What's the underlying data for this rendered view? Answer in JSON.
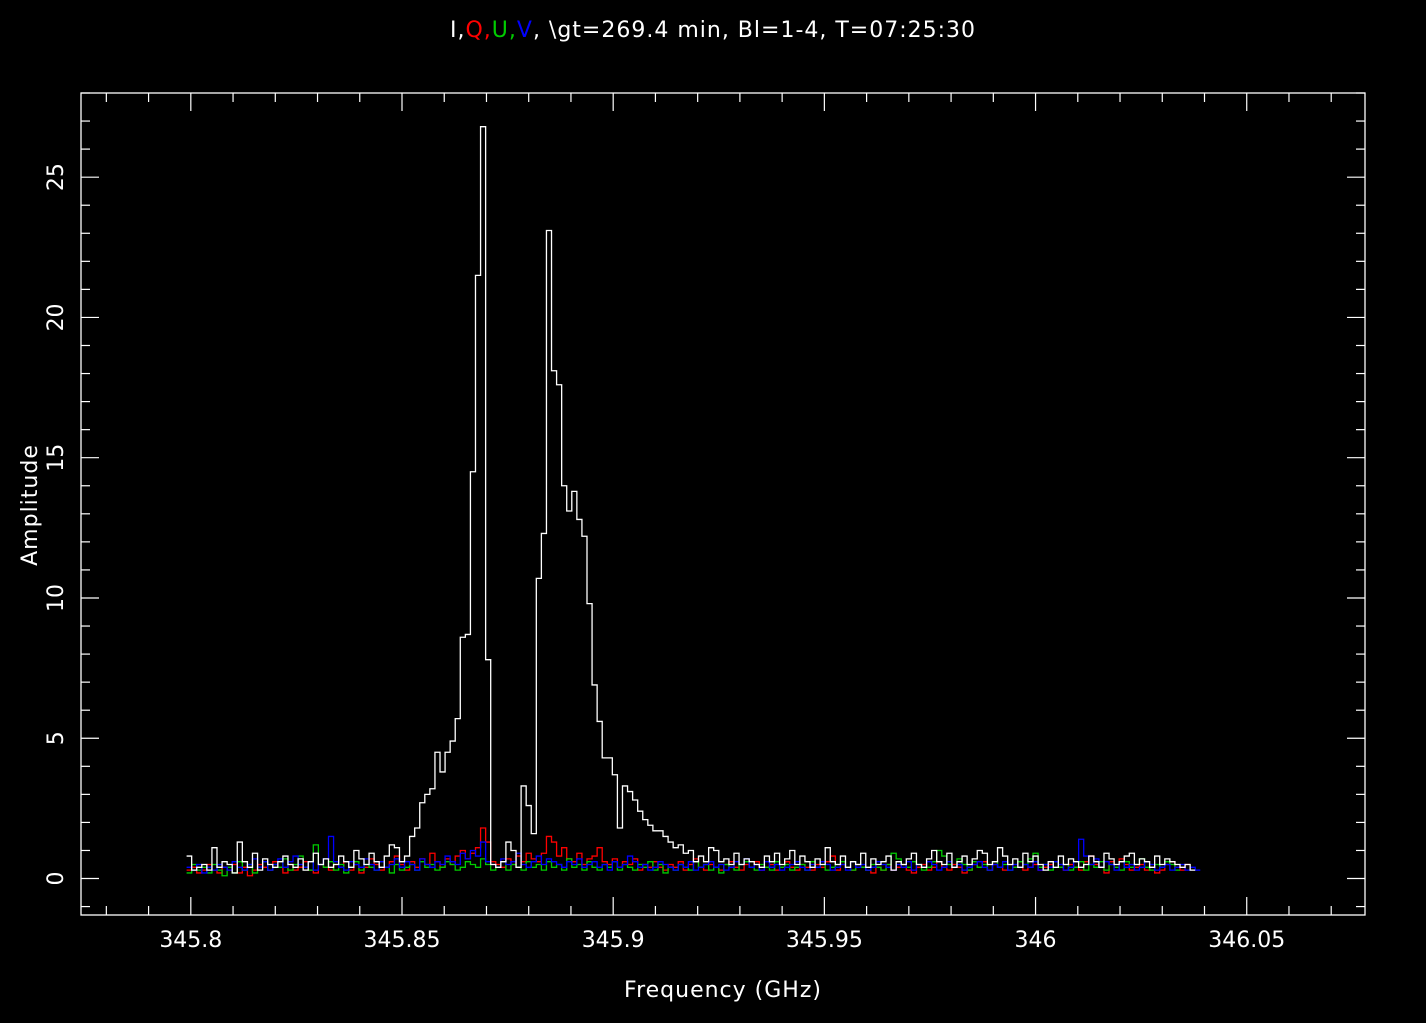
{
  "title": {
    "parts": [
      {
        "text": "I",
        "color": "#ffffff"
      },
      {
        "text": ",",
        "color": "#ffffff"
      },
      {
        "text": "Q",
        "color": "#ff0000"
      },
      {
        "text": ",",
        "color": "#ff0000"
      },
      {
        "text": "U",
        "color": "#00cc00"
      },
      {
        "text": ",",
        "color": "#00cc00"
      },
      {
        "text": "V",
        "color": "#0000ff"
      },
      {
        "text": ", \\gt=269.4 min, Bl=1-4, T=07:25:30",
        "color": "#ffffff"
      }
    ]
  },
  "chart_data": {
    "type": "line",
    "style": "step",
    "xlabel": "Frequency (GHz)",
    "ylabel": "Amplitude",
    "xlim": [
      345.774,
      346.078
    ],
    "ylim": [
      -1.3,
      28.0
    ],
    "xticks": [
      345.8,
      345.85,
      345.9,
      345.95,
      346,
      346.05
    ],
    "xtick_labels": [
      "345.8",
      "345.85",
      "345.9",
      "345.95",
      "346",
      "346.05"
    ],
    "yticks": [
      0,
      5,
      10,
      15,
      20,
      25
    ],
    "ytick_labels": [
      "0",
      "5",
      "10",
      "15",
      "20",
      "25"
    ],
    "grid": false,
    "background": "#000000",
    "series": [
      {
        "name": "I",
        "color": "#ffffff",
        "x_start": 345.799,
        "x_step": 0.0012,
        "values": [
          0.8,
          0.3,
          0.4,
          0.5,
          0.3,
          1.1,
          0.4,
          0.6,
          0.5,
          0.2,
          1.3,
          0.6,
          0.4,
          0.9,
          0.3,
          0.7,
          0.5,
          0.4,
          0.6,
          0.8,
          0.5,
          0.4,
          0.7,
          0.3,
          0.6,
          0.9,
          0.5,
          0.7,
          0.4,
          0.5,
          0.8,
          0.6,
          0.4,
          1.0,
          0.7,
          0.5,
          0.9,
          0.6,
          0.4,
          0.8,
          1.2,
          1.1,
          0.6,
          0.8,
          1.5,
          1.8,
          2.7,
          3.0,
          3.2,
          4.5,
          3.8,
          4.5,
          4.9,
          5.7,
          8.6,
          8.7,
          14.5,
          21.5,
          26.8,
          7.8,
          0.5,
          0.4,
          0.6,
          1.3,
          1.0,
          0.4,
          3.3,
          2.6,
          1.6,
          10.7,
          12.3,
          23.1,
          18.1,
          17.6,
          14.0,
          13.1,
          13.8,
          12.8,
          12.2,
          9.8,
          6.9,
          5.6,
          4.3,
          4.3,
          3.7,
          1.8,
          3.3,
          3.1,
          2.8,
          2.4,
          2.1,
          1.9,
          1.7,
          1.7,
          1.5,
          1.3,
          1.1,
          1.2,
          0.9,
          1.0,
          0.6,
          0.8,
          0.6,
          1.1,
          1.0,
          0.6,
          0.7,
          0.5,
          0.9,
          0.5,
          0.7,
          0.6,
          0.5,
          0.4,
          0.8,
          0.6,
          0.9,
          0.5,
          0.7,
          1.0,
          0.5,
          0.8,
          0.6,
          0.4,
          0.7,
          0.5,
          1.1,
          0.6,
          0.5,
          0.8,
          0.4,
          0.6,
          0.5,
          0.9,
          0.4,
          0.7,
          0.5,
          0.6,
          0.8,
          0.3,
          0.6,
          0.5,
          0.7,
          0.9,
          0.5,
          0.4,
          0.7,
          1.0,
          0.6,
          0.5,
          0.9,
          0.4,
          0.6,
          0.8,
          0.5,
          0.7,
          1.0,
          0.9,
          0.5,
          0.6,
          1.1,
          0.8,
          0.5,
          0.7,
          0.4,
          0.9,
          0.6,
          0.8,
          0.5,
          0.3,
          0.6,
          0.4,
          0.8,
          0.5,
          0.7,
          0.6,
          0.4,
          0.5,
          0.8,
          0.6,
          0.4,
          0.9,
          0.7,
          0.5,
          0.6,
          0.8,
          0.9,
          0.5,
          0.7,
          0.6,
          0.4,
          0.8,
          0.5,
          0.7,
          0.6,
          0.5,
          0.4,
          0.5,
          0.3
        ]
      },
      {
        "name": "Q",
        "color": "#ff0000",
        "x_start": 345.799,
        "x_step": 0.0012,
        "values": [
          0.3,
          0.4,
          0.2,
          0.3,
          0.5,
          0.3,
          0.2,
          0.4,
          0.3,
          0.5,
          0.2,
          0.4,
          0.1,
          0.3,
          0.5,
          0.4,
          0.3,
          0.6,
          0.4,
          0.2,
          0.5,
          0.3,
          0.4,
          0.6,
          0.3,
          0.2,
          0.5,
          0.4,
          0.3,
          0.5,
          0.4,
          0.6,
          0.3,
          0.5,
          0.2,
          0.4,
          0.7,
          0.5,
          0.3,
          0.4,
          0.6,
          0.8,
          0.5,
          0.3,
          0.6,
          0.4,
          0.7,
          0.5,
          0.9,
          0.6,
          0.4,
          0.7,
          0.5,
          0.8,
          1.0,
          0.7,
          0.9,
          1.1,
          1.8,
          1.3,
          0.6,
          0.5,
          0.4,
          0.7,
          0.5,
          0.8,
          0.6,
          0.9,
          0.7,
          0.6,
          0.9,
          1.5,
          1.3,
          0.8,
          1.1,
          0.7,
          0.6,
          0.9,
          0.5,
          0.7,
          0.8,
          1.1,
          0.6,
          0.5,
          0.7,
          0.4,
          0.6,
          0.5,
          0.7,
          0.3,
          0.5,
          0.4,
          0.6,
          0.4,
          0.3,
          0.5,
          0.4,
          0.6,
          0.3,
          0.5,
          0.7,
          0.4,
          0.3,
          0.5,
          0.4,
          0.3,
          0.5,
          0.6,
          0.4,
          0.3,
          0.5,
          0.4,
          0.6,
          0.3,
          0.4,
          0.5,
          0.3,
          0.4,
          0.6,
          0.4,
          0.3,
          0.5,
          0.4,
          0.3,
          0.5,
          0.4,
          0.6,
          0.8,
          0.3,
          0.5,
          0.4,
          0.3,
          0.5,
          0.4,
          0.3,
          0.2,
          0.4,
          0.3,
          0.5,
          0.3,
          0.4,
          0.5,
          0.3,
          0.2,
          0.4,
          0.5,
          0.3,
          0.4,
          0.6,
          0.4,
          0.3,
          0.5,
          0.4,
          0.2,
          0.3,
          0.5,
          0.4,
          0.6,
          0.3,
          0.5,
          0.4,
          0.3,
          0.5,
          0.4,
          0.6,
          0.3,
          0.4,
          0.5,
          0.3,
          0.4,
          0.5,
          0.6,
          0.4,
          0.3,
          0.5,
          0.4,
          0.3,
          0.6,
          0.8,
          0.5,
          0.4,
          0.2,
          0.6,
          0.4,
          0.7,
          0.5,
          0.3,
          0.4,
          0.5,
          0.3,
          0.4,
          0.2,
          0.3,
          0.5,
          0.6,
          0.4,
          0.3,
          0.5
        ]
      },
      {
        "name": "U",
        "color": "#00cc00",
        "x_start": 345.799,
        "x_step": 0.0012,
        "values": [
          0.2,
          0.5,
          0.3,
          0.4,
          0.2,
          0.5,
          0.3,
          0.1,
          0.4,
          0.2,
          0.6,
          0.3,
          0.5,
          0.2,
          0.4,
          0.6,
          0.3,
          0.5,
          0.4,
          0.7,
          0.3,
          0.5,
          0.8,
          0.4,
          0.3,
          1.2,
          0.5,
          0.4,
          0.6,
          0.3,
          0.5,
          0.2,
          0.4,
          0.6,
          0.3,
          0.5,
          0.4,
          0.3,
          0.6,
          0.4,
          0.2,
          0.5,
          0.3,
          0.4,
          0.5,
          0.3,
          0.6,
          0.4,
          0.5,
          0.3,
          0.4,
          0.6,
          0.5,
          0.3,
          0.4,
          0.6,
          0.5,
          0.4,
          0.7,
          0.5,
          0.3,
          0.4,
          0.6,
          0.3,
          0.5,
          0.4,
          0.3,
          0.6,
          0.4,
          0.5,
          0.3,
          0.6,
          0.4,
          0.5,
          0.3,
          0.7,
          0.4,
          0.5,
          0.3,
          0.6,
          0.4,
          0.3,
          0.5,
          0.4,
          0.6,
          0.3,
          0.5,
          0.4,
          0.3,
          0.5,
          0.4,
          0.6,
          0.3,
          0.5,
          0.2,
          0.4,
          0.3,
          0.5,
          0.4,
          0.3,
          0.6,
          0.4,
          0.5,
          0.3,
          0.4,
          0.2,
          0.5,
          0.4,
          0.3,
          0.5,
          0.6,
          0.4,
          0.3,
          0.5,
          0.4,
          0.3,
          0.6,
          0.4,
          0.5,
          0.3,
          0.4,
          0.5,
          0.3,
          0.6,
          0.4,
          0.5,
          0.3,
          0.4,
          0.5,
          0.6,
          0.4,
          0.3,
          0.5,
          0.4,
          0.3,
          0.5,
          0.4,
          0.3,
          0.5,
          0.9,
          0.7,
          0.5,
          0.4,
          0.6,
          0.5,
          0.3,
          0.4,
          0.6,
          1.0,
          0.8,
          0.5,
          0.4,
          0.7,
          0.5,
          0.3,
          0.6,
          0.4,
          0.5,
          0.3,
          0.6,
          0.4,
          0.5,
          0.3,
          0.4,
          0.6,
          0.5,
          0.7,
          0.9,
          0.4,
          0.5,
          0.3,
          0.6,
          0.4,
          0.5,
          0.3,
          0.4,
          0.6,
          0.3,
          0.5,
          0.4,
          0.6,
          0.3,
          0.5,
          0.4,
          0.3,
          0.6,
          0.4,
          0.5,
          0.7,
          0.4,
          0.3,
          0.5,
          0.4,
          0.6,
          0.5,
          0.3
        ]
      },
      {
        "name": "V",
        "color": "#0000ff",
        "x_start": 345.799,
        "x_step": 0.0012,
        "values": [
          0.4,
          0.3,
          0.5,
          0.2,
          0.4,
          0.3,
          0.5,
          0.4,
          0.3,
          0.6,
          0.4,
          0.3,
          0.5,
          0.7,
          0.4,
          0.6,
          0.3,
          0.5,
          0.7,
          0.4,
          0.6,
          0.8,
          0.5,
          0.4,
          0.6,
          0.3,
          0.5,
          0.7,
          1.5,
          0.6,
          0.4,
          0.3,
          0.6,
          0.5,
          0.4,
          0.7,
          0.5,
          0.3,
          0.6,
          0.4,
          0.5,
          0.7,
          0.4,
          0.6,
          0.5,
          0.3,
          0.7,
          0.5,
          0.4,
          0.6,
          0.5,
          0.8,
          0.6,
          0.5,
          0.9,
          0.7,
          1.0,
          0.8,
          1.3,
          0.6,
          0.5,
          0.4,
          0.7,
          0.5,
          0.6,
          0.9,
          0.5,
          0.4,
          0.6,
          0.8,
          0.5,
          0.7,
          0.6,
          0.5,
          0.4,
          0.6,
          0.5,
          0.7,
          0.4,
          0.5,
          0.6,
          0.4,
          0.5,
          0.3,
          0.6,
          0.4,
          0.5,
          0.8,
          0.6,
          0.4,
          0.5,
          0.3,
          0.4,
          0.6,
          0.5,
          0.4,
          0.3,
          0.5,
          0.4,
          0.6,
          0.3,
          0.4,
          0.5,
          0.6,
          0.4,
          0.5,
          0.3,
          0.4,
          0.6,
          0.5,
          0.7,
          0.4,
          0.5,
          0.3,
          0.6,
          0.4,
          0.5,
          0.3,
          0.4,
          0.5,
          0.6,
          0.4,
          0.3,
          0.5,
          0.4,
          0.6,
          0.5,
          0.3,
          0.4,
          0.5,
          0.3,
          0.6,
          0.4,
          0.5,
          0.3,
          0.4,
          0.6,
          0.5,
          0.4,
          0.3,
          0.5,
          0.4,
          0.6,
          0.3,
          0.5,
          0.4,
          0.6,
          0.5,
          0.3,
          0.4,
          0.6,
          0.4,
          0.5,
          0.3,
          0.4,
          0.5,
          0.6,
          0.4,
          0.3,
          0.5,
          0.4,
          0.6,
          0.3,
          0.5,
          0.4,
          0.5,
          0.4,
          0.6,
          0.3,
          0.5,
          0.4,
          0.6,
          0.5,
          0.3,
          0.4,
          0.6,
          1.4,
          0.8,
          0.5,
          0.7,
          0.4,
          0.6,
          0.5,
          0.3,
          0.6,
          0.4,
          0.5,
          0.3,
          0.4,
          0.6,
          0.5,
          0.3,
          0.4,
          0.5,
          0.3,
          0.4,
          0.5,
          0.3,
          0.4,
          0.3
        ]
      }
    ]
  }
}
